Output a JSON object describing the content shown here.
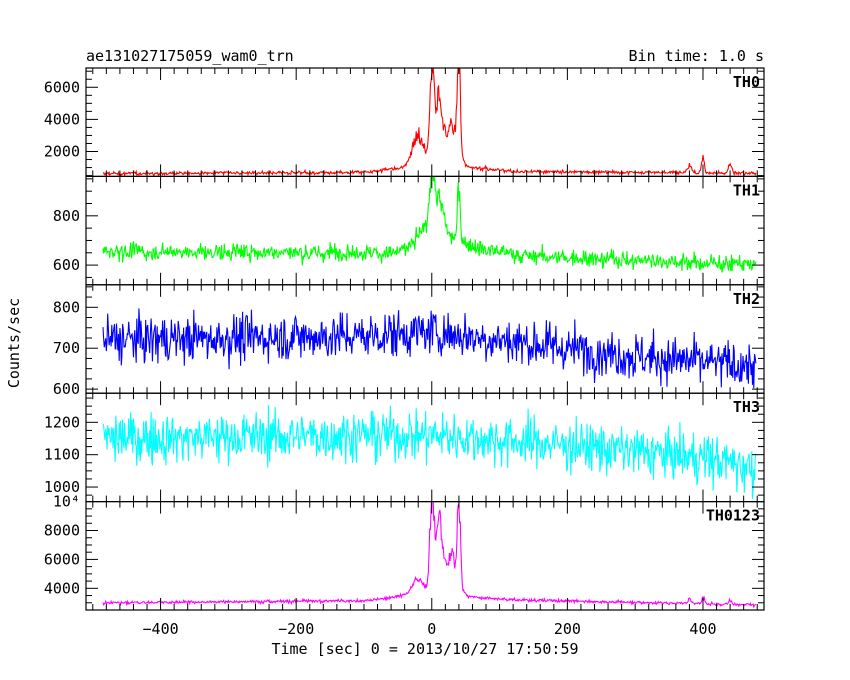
{
  "chart_data": {
    "type": "line",
    "title": "ae131027175059_wam0_trn",
    "subtitle": "Bin time: 1.0 s",
    "xlabel": "Time [sec] 0 = 2013/10/27 17:50:59",
    "ylabel": "Counts/sec",
    "xlim": [
      -510,
      490
    ],
    "x_ticks": [
      -400,
      -200,
      0,
      200,
      400
    ],
    "x_tick_labels": [
      "−400",
      "−200",
      "0",
      "200",
      "400"
    ],
    "grid": false,
    "panels": [
      {
        "name": "TH0",
        "color": "#ff0000",
        "ylim": [
          450,
          7200
        ],
        "y_ticks": [
          2000,
          4000,
          6000
        ],
        "y_tick_labels": [
          "2000",
          "4000",
          "6000"
        ],
        "baseline": [
          [
            -485,
            620
          ],
          [
            -100,
            700
          ],
          [
            -20,
            1100
          ],
          [
            30,
            1100
          ],
          [
            120,
            760
          ],
          [
            480,
            640
          ]
        ],
        "noise": 90,
        "features": [
          [
            -20,
            2000,
            12
          ],
          [
            0,
            5500,
            4
          ],
          [
            10,
            4000,
            8
          ],
          [
            40,
            5500,
            3
          ],
          [
            30,
            2500,
            12
          ],
          [
            380,
            500,
            4
          ],
          [
            400,
            1000,
            3
          ],
          [
            440,
            600,
            3
          ]
        ]
      },
      {
        "name": "TH1",
        "color": "#00ff00",
        "ylim": [
          520,
          960
        ],
        "y_ticks": [
          600,
          800
        ],
        "y_tick_labels": [
          "600",
          "800"
        ],
        "baseline": [
          [
            -485,
            655
          ],
          [
            -60,
            650
          ],
          [
            -20,
            680
          ],
          [
            20,
            720
          ],
          [
            60,
            680
          ],
          [
            120,
            640
          ],
          [
            480,
            600
          ]
        ],
        "noise": 28,
        "features": [
          [
            0,
            200,
            5
          ],
          [
            10,
            140,
            10
          ],
          [
            40,
            200,
            3
          ],
          [
            -10,
            60,
            15
          ]
        ]
      },
      {
        "name": "TH2",
        "color": "#0000ff",
        "ylim": [
          590,
          855
        ],
        "y_ticks": [
          600,
          700,
          800
        ],
        "y_tick_labels": [
          "600",
          "700",
          "800"
        ],
        "baseline": [
          [
            -485,
            720
          ],
          [
            -100,
            730
          ],
          [
            0,
            740
          ],
          [
            100,
            720
          ],
          [
            300,
            680
          ],
          [
            480,
            655
          ]
        ],
        "noise": 48,
        "features": []
      },
      {
        "name": "TH3",
        "color": "#00ffff",
        "ylim": [
          955,
          1290
        ],
        "y_ticks": [
          1000,
          1100,
          1200
        ],
        "y_tick_labels": [
          "1000",
          "1100",
          "1200"
        ],
        "baseline": [
          [
            -485,
            1150
          ],
          [
            -100,
            1160
          ],
          [
            0,
            1160
          ],
          [
            200,
            1130
          ],
          [
            400,
            1090
          ],
          [
            480,
            1060
          ]
        ],
        "noise": 65,
        "features": []
      },
      {
        "name": "TH0123",
        "color": "#ff00ff",
        "ylim": [
          2500,
          10000
        ],
        "y_ticks": [
          4000,
          6000,
          8000,
          10000
        ],
        "y_tick_labels": [
          "4000",
          "6000",
          "8000",
          "10⁴"
        ],
        "baseline": [
          [
            -485,
            3000
          ],
          [
            -100,
            3150
          ],
          [
            -20,
            3600
          ],
          [
            30,
            3500
          ],
          [
            120,
            3200
          ],
          [
            480,
            2850
          ]
        ],
        "noise": 90,
        "features": [
          [
            -20,
            1100,
            12
          ],
          [
            0,
            6200,
            4
          ],
          [
            10,
            4800,
            8
          ],
          [
            40,
            6000,
            3
          ],
          [
            30,
            2700,
            12
          ],
          [
            380,
            300,
            4
          ],
          [
            400,
            500,
            3
          ],
          [
            440,
            300,
            3
          ]
        ]
      }
    ]
  }
}
